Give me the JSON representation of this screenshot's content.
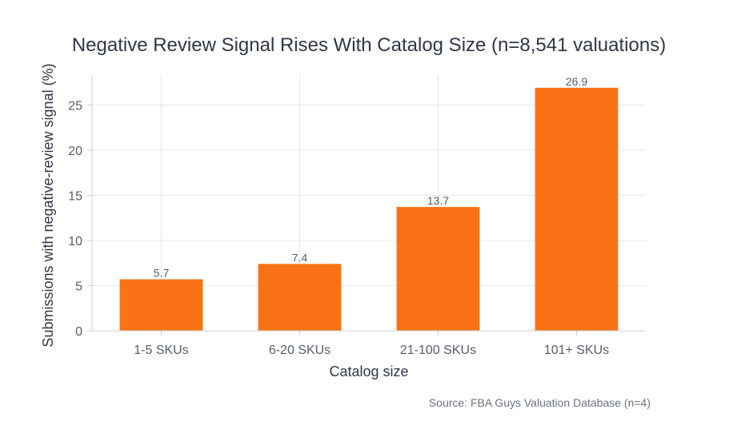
{
  "chart_data": {
    "type": "bar",
    "title": "Negative Review Signal Rises With Catalog Size (n=8,541 valuations)",
    "xlabel": "Catalog size",
    "ylabel": "Submissions with negative-review signal (%)",
    "categories": [
      "1-5 SKUs",
      "6-20 SKUs",
      "21-100 SKUs",
      "101+ SKUs"
    ],
    "values": [
      5.7,
      7.4,
      13.7,
      26.9
    ],
    "data_labels": [
      "5.7",
      "7.4",
      "13.7",
      "26.9"
    ],
    "ylim": [
      0,
      28.3
    ],
    "yticks": [
      0,
      5,
      10,
      15,
      20,
      25
    ],
    "grid": true,
    "bar_color": "#f97316",
    "source": "Source: FBA Guys Valuation Database (n=4)"
  }
}
